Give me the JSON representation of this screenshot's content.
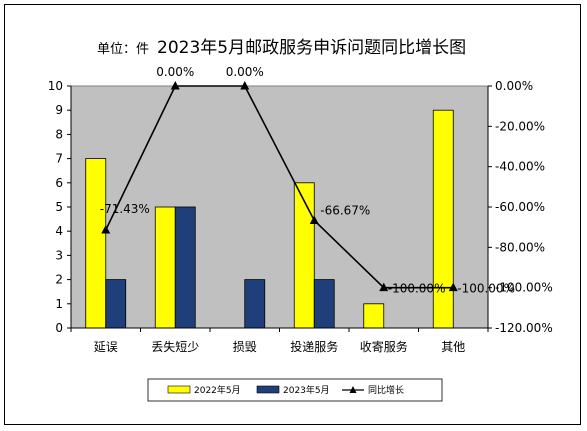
{
  "chart_data": {
    "type": "bar+line",
    "title_unit": "单位：件",
    "title": "2023年5月邮政服务申诉问题同比增长图",
    "categories": [
      "延误",
      "丢失短少",
      "损毁",
      "投递服务",
      "收寄服务",
      "其他"
    ],
    "series": [
      {
        "name": "2022年5月",
        "type": "bar",
        "color": "#ffff00",
        "values": [
          7,
          5,
          0,
          6,
          1,
          9
        ]
      },
      {
        "name": "2023年5月",
        "type": "bar",
        "color": "#1f3f7a",
        "values": [
          2,
          5,
          2,
          2,
          0,
          0
        ]
      },
      {
        "name": "同比增长",
        "type": "line",
        "axis": "right",
        "color": "#000000",
        "values": [
          -71.43,
          0,
          0,
          -66.67,
          -100,
          -100
        ]
      }
    ],
    "data_labels": [
      "-71.43%",
      "0.00%",
      "0.00%",
      "-66.67%",
      "-100.00%",
      "-100.00%"
    ],
    "y_left": {
      "min": 0,
      "max": 10,
      "ticks": [
        "0",
        "1",
        "2",
        "3",
        "4",
        "5",
        "6",
        "7",
        "8",
        "9",
        "10"
      ]
    },
    "y_right": {
      "min": -120,
      "max": 0,
      "ticks": [
        "0.00%",
        "-20.00%",
        "-40.00%",
        "-60.00%",
        "-80.00%",
        "-100.00%",
        "-120.00%"
      ]
    },
    "plot_background": "#c0c0c0",
    "legend_position": "bottom"
  }
}
